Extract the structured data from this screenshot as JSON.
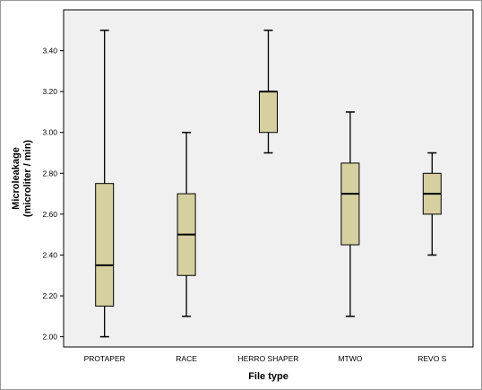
{
  "chart_data": {
    "type": "boxplot",
    "xlabel": "File type",
    "ylabel": "Microleakage",
    "ylabel_sub": "(microliter / min)",
    "ylim": [
      1.95,
      3.6
    ],
    "yticks": [
      "2.00",
      "2.20",
      "2.40",
      "2.60",
      "2.80",
      "3.00",
      "3.20",
      "3.40"
    ],
    "grid": false,
    "colors": {
      "box_fill": "#d6d0a0",
      "plot_bg": "#f0f0f0",
      "line": "#000000"
    },
    "categories": [
      "PROTAPER",
      "RACE",
      "HERRO SHAPER",
      "MTWO",
      "REVO S"
    ],
    "boxes": [
      {
        "min": 2.0,
        "q1": 2.15,
        "median": 2.35,
        "q3": 2.75,
        "max": 3.5
      },
      {
        "min": 2.1,
        "q1": 2.3,
        "median": 2.5,
        "q3": 2.7,
        "max": 3.0
      },
      {
        "min": 2.9,
        "q1": 3.0,
        "median": 3.2,
        "q3": 3.2,
        "max": 3.5
      },
      {
        "min": 2.1,
        "q1": 2.45,
        "median": 2.7,
        "q3": 2.85,
        "max": 3.1
      },
      {
        "min": 2.4,
        "q1": 2.6,
        "median": 2.7,
        "q3": 2.8,
        "max": 2.9
      }
    ]
  }
}
